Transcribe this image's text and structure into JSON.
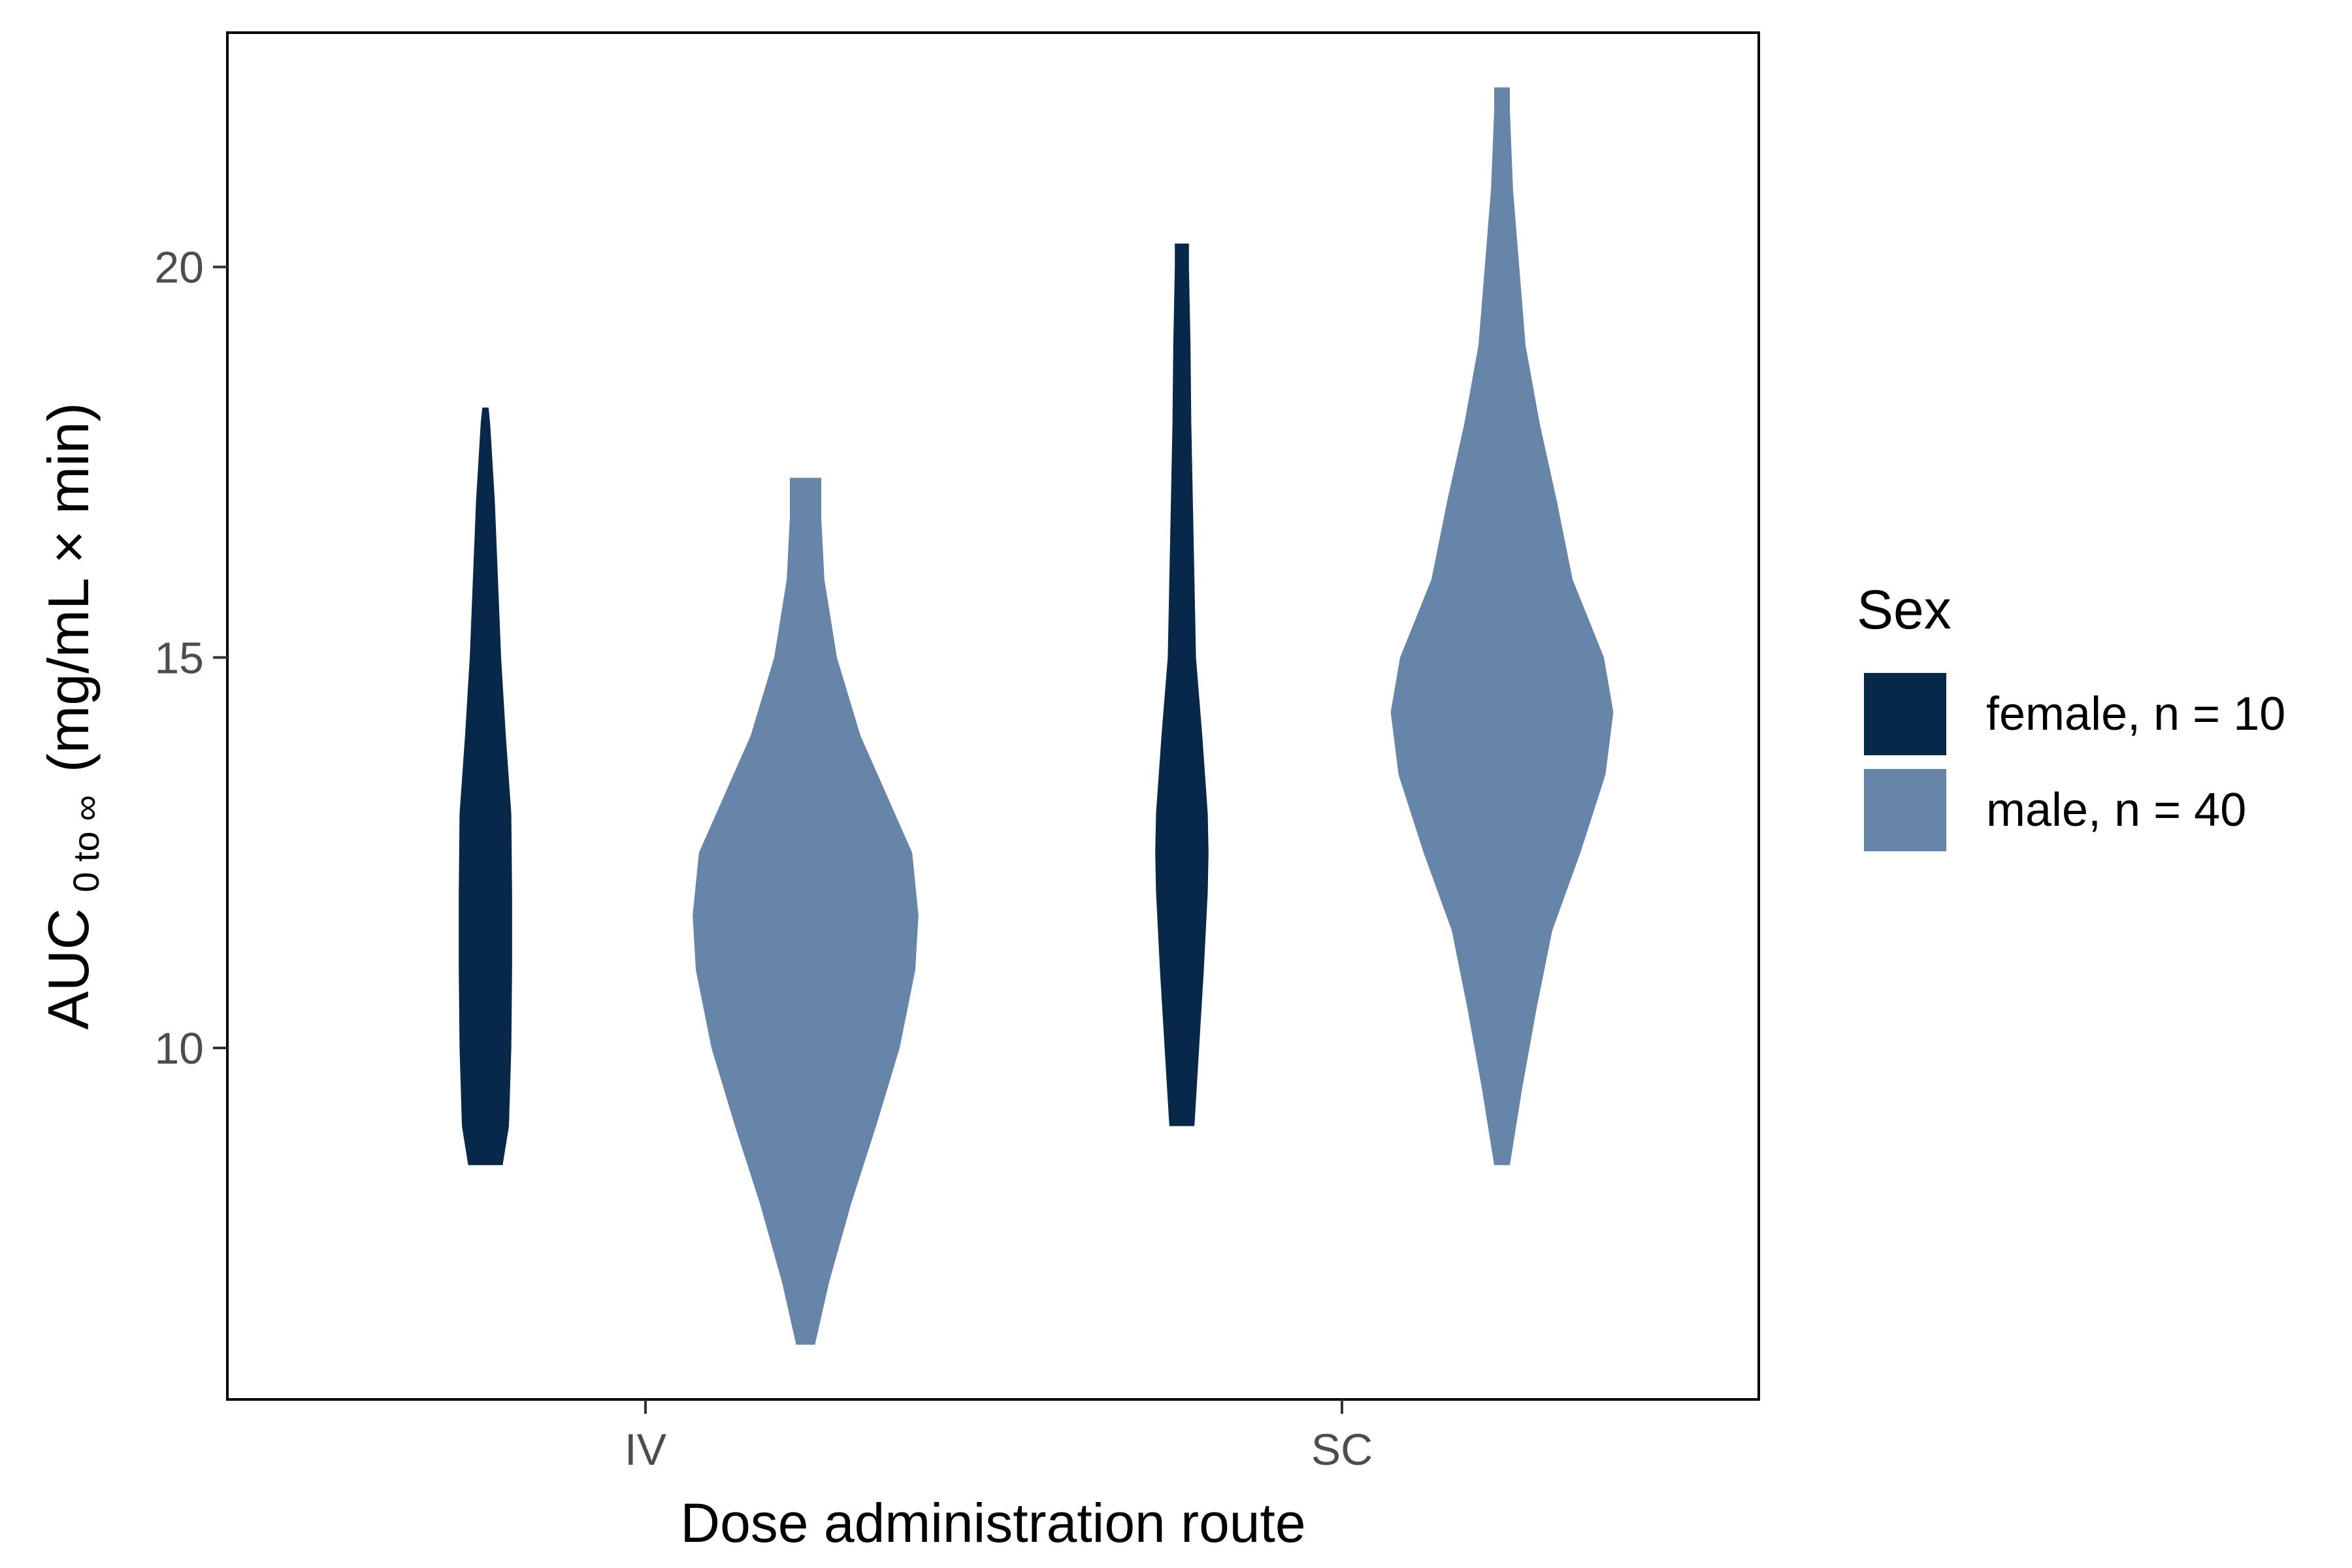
{
  "chart_data": {
    "type": "violin",
    "xlabel": "Dose administration route",
    "ylabel": {
      "main": "AUC",
      "subscript": "0 to ∞",
      "unit": "(mg/mL × min)"
    },
    "categories": [
      "IV",
      "SC"
    ],
    "y_ticks": [
      10,
      15,
      20
    ],
    "ylim": [
      5.5,
      23
    ],
    "grid": false,
    "legend": {
      "title": "Sex",
      "position": "right"
    },
    "colors": {
      "female": "#08284A",
      "male": "#6784A9"
    },
    "series": [
      {
        "name": "female, n = 10",
        "key": "female",
        "violins": [
          {
            "category": "IV",
            "min": 8.5,
            "max": 18.2,
            "profile": [
              [
                8.5,
                0.11
              ],
              [
                9.0,
                0.15
              ],
              [
                10.0,
                0.165
              ],
              [
                11.0,
                0.17
              ],
              [
                12.0,
                0.17
              ],
              [
                13.0,
                0.165
              ],
              [
                14.0,
                0.13
              ],
              [
                15.0,
                0.1
              ],
              [
                16.0,
                0.08
              ],
              [
                17.0,
                0.06
              ],
              [
                18.0,
                0.03
              ],
              [
                18.2,
                0.02
              ]
            ]
          },
          {
            "category": "SC",
            "min": 9.0,
            "max": 20.3,
            "profile": [
              [
                9.0,
                0.08
              ],
              [
                10.0,
                0.11
              ],
              [
                11.0,
                0.14
              ],
              [
                12.0,
                0.165
              ],
              [
                12.5,
                0.17
              ],
              [
                13.0,
                0.165
              ],
              [
                14.0,
                0.13
              ],
              [
                15.0,
                0.09
              ],
              [
                16.0,
                0.08
              ],
              [
                17.0,
                0.07
              ],
              [
                18.0,
                0.06
              ],
              [
                19.0,
                0.055
              ],
              [
                20.0,
                0.045
              ],
              [
                20.3,
                0.045
              ]
            ]
          }
        ]
      },
      {
        "name": "male, n = 40",
        "key": "male",
        "violins": [
          {
            "category": "IV",
            "min": 6.2,
            "max": 17.3,
            "profile": [
              [
                6.2,
                0.06
              ],
              [
                7.0,
                0.15
              ],
              [
                8.0,
                0.29
              ],
              [
                9.0,
                0.45
              ],
              [
                10.0,
                0.6
              ],
              [
                11.0,
                0.7
              ],
              [
                11.7,
                0.72
              ],
              [
                12.5,
                0.68
              ],
              [
                13.0,
                0.57
              ],
              [
                14.0,
                0.35
              ],
              [
                15.0,
                0.2
              ],
              [
                16.0,
                0.12
              ],
              [
                16.8,
                0.1
              ],
              [
                17.3,
                0.1
              ]
            ]
          },
          {
            "category": "SC",
            "min": 8.5,
            "max": 22.3,
            "profile": [
              [
                8.5,
                0.05
              ],
              [
                9.5,
                0.13
              ],
              [
                10.5,
                0.22
              ],
              [
                11.5,
                0.32
              ],
              [
                12.5,
                0.5
              ],
              [
                13.5,
                0.66
              ],
              [
                14.3,
                0.71
              ],
              [
                15.0,
                0.65
              ],
              [
                16.0,
                0.45
              ],
              [
                17.0,
                0.35
              ],
              [
                18.0,
                0.24
              ],
              [
                19.0,
                0.15
              ],
              [
                20.0,
                0.11
              ],
              [
                21.0,
                0.07
              ],
              [
                22.0,
                0.05
              ],
              [
                22.3,
                0.05
              ]
            ]
          }
        ]
      }
    ]
  }
}
